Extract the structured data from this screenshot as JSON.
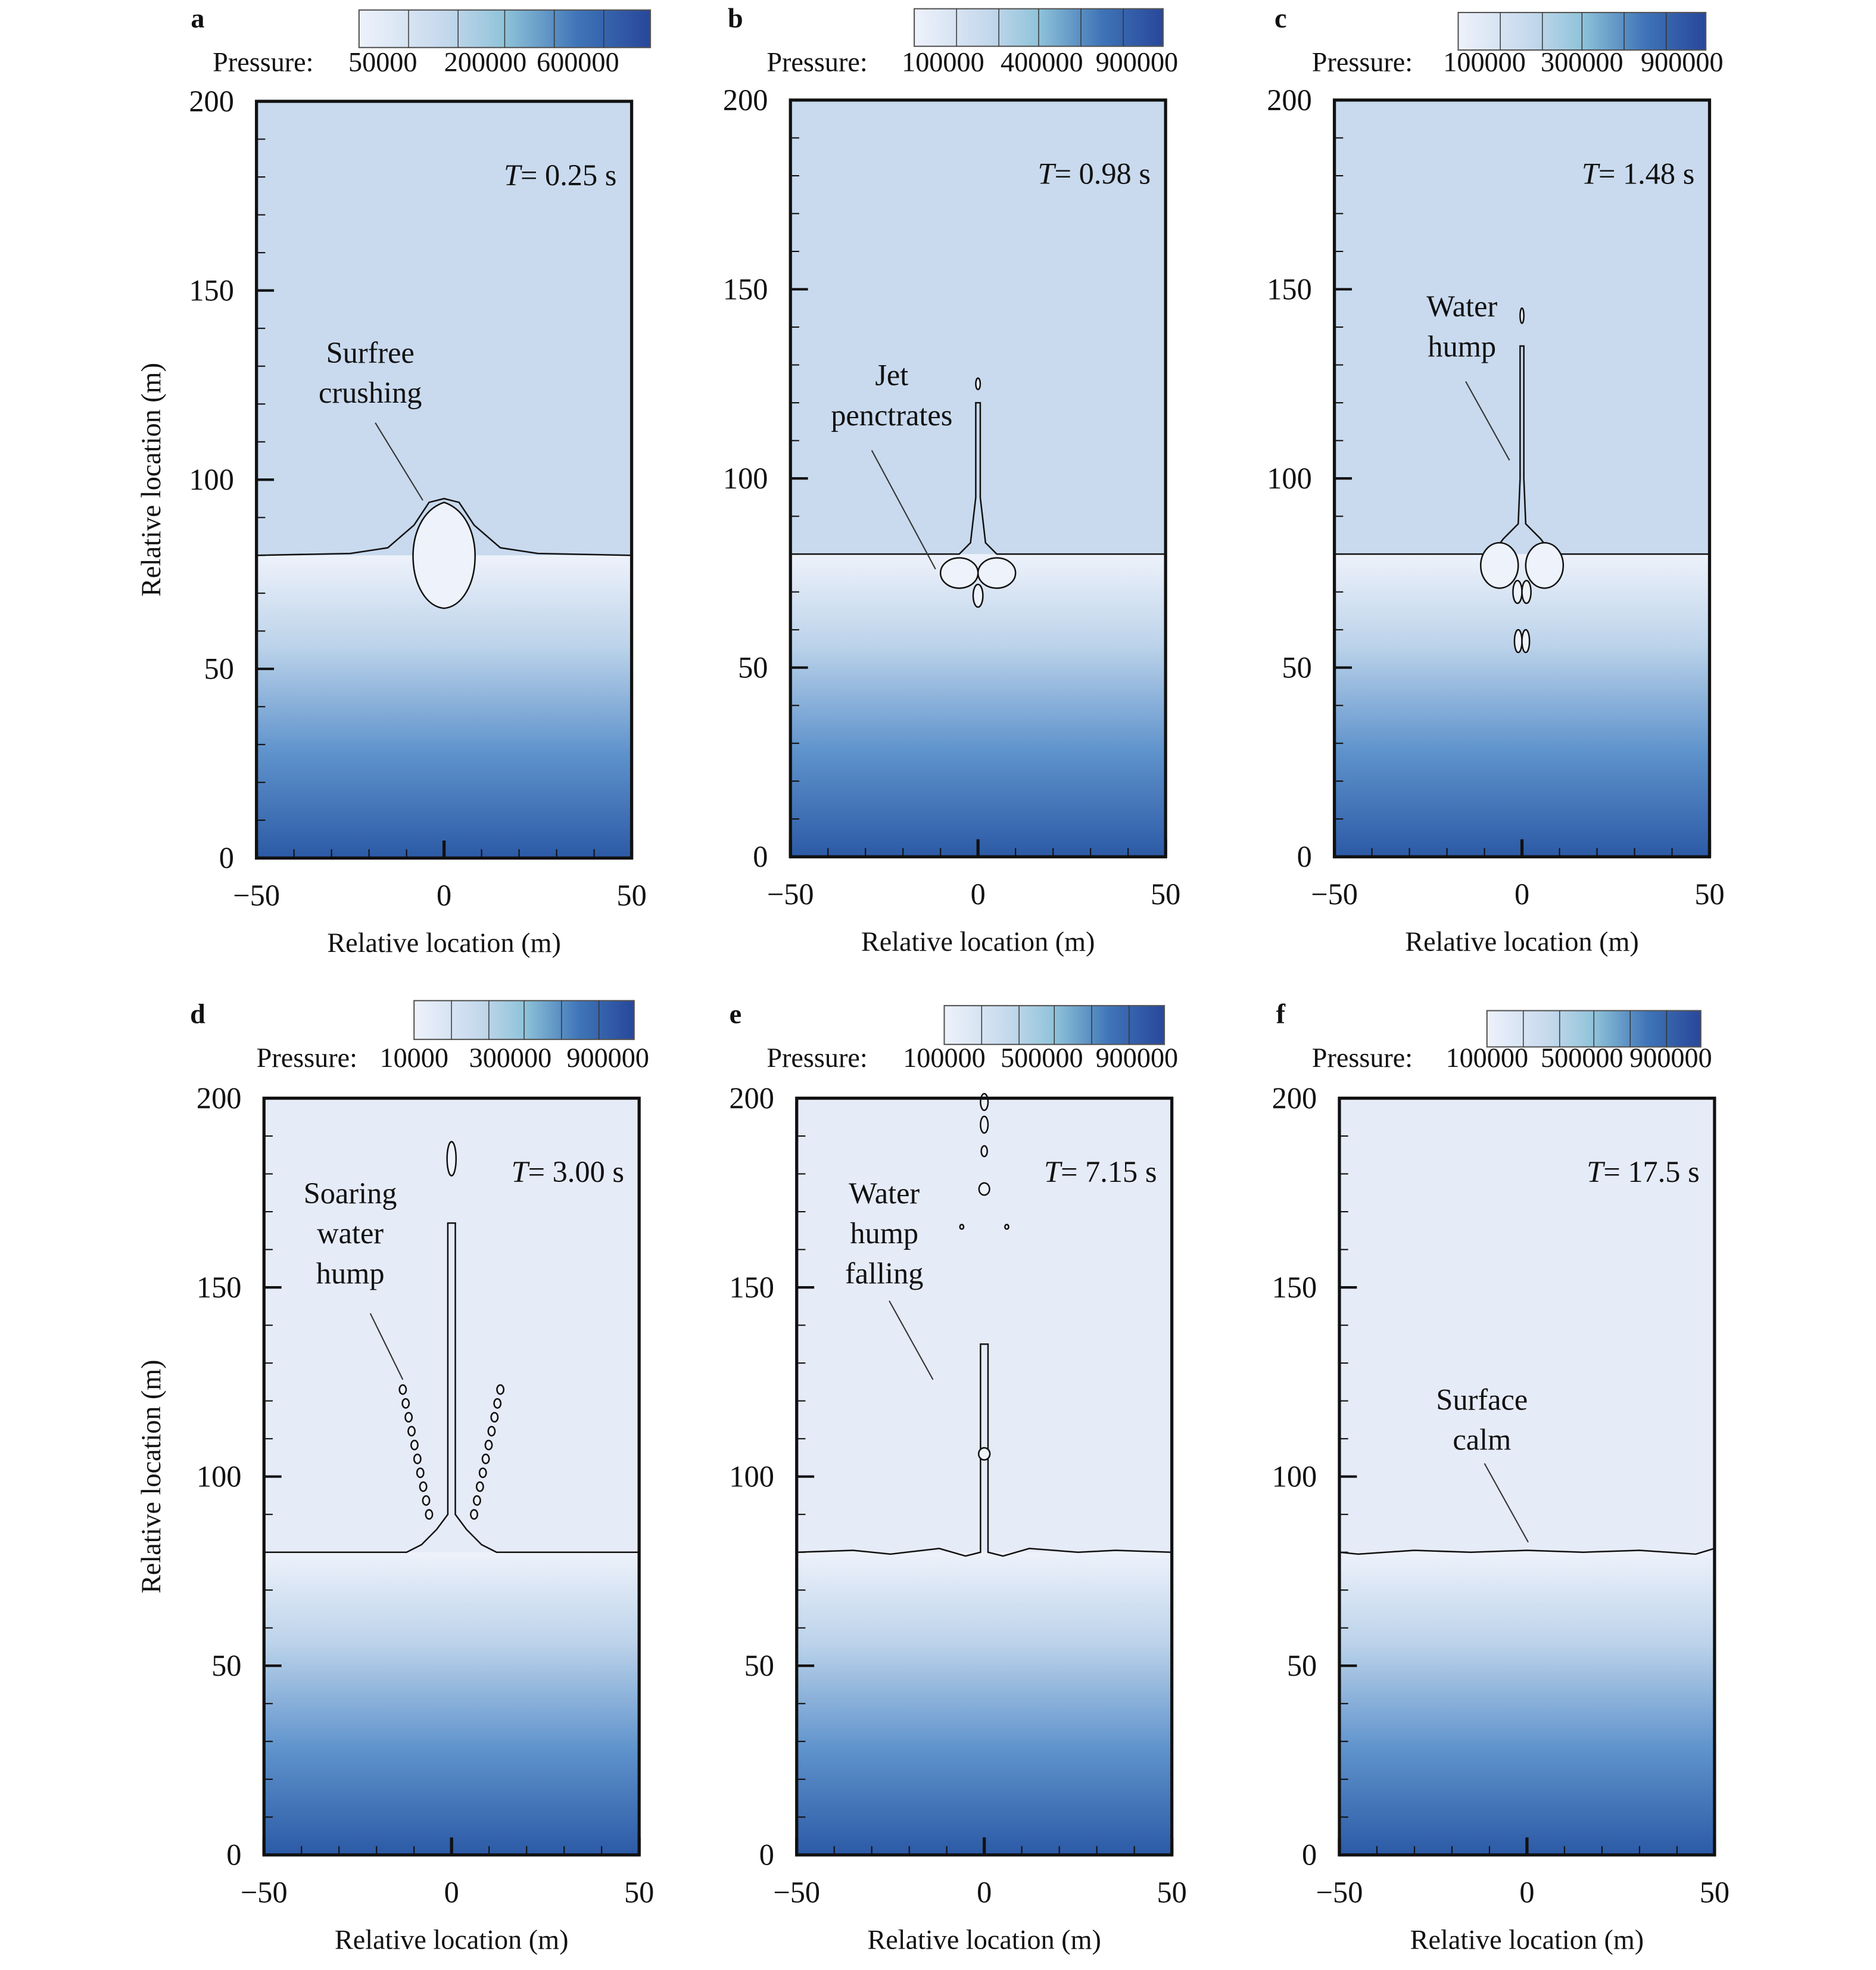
{
  "chart_data": [
    {
      "type": "heatmap",
      "panel": "a",
      "time_prefix": "T",
      "time_value": "= 0.25 s",
      "colorbar_label": "Pressure:",
      "colorbar_ticks": [
        "50000",
        "200000",
        "600000"
      ],
      "annotation": [
        "Surfree",
        "crushing"
      ],
      "xlabel": "Relative location (m)",
      "ylabel": "Relative location (m)",
      "xlim": [
        -50,
        50
      ],
      "ylim": [
        0,
        200
      ],
      "xticks": [
        "−50",
        "0",
        "50"
      ],
      "yticks": [
        "0",
        "50",
        "100",
        "150",
        "200"
      ],
      "air_color": "#c9daee"
    },
    {
      "type": "heatmap",
      "panel": "b",
      "time_prefix": "T",
      "time_value": "= 0.98 s",
      "colorbar_label": "Pressure:",
      "colorbar_ticks": [
        "100000",
        "400000",
        "900000"
      ],
      "annotation": [
        "Jet",
        "penctrates"
      ],
      "xlabel": "Relative location (m)",
      "ylabel": "",
      "xlim": [
        -50,
        50
      ],
      "ylim": [
        0,
        200
      ],
      "xticks": [
        "−50",
        "0",
        "50"
      ],
      "yticks": [
        "0",
        "50",
        "100",
        "150",
        "200"
      ],
      "air_color": "#c9daee"
    },
    {
      "type": "heatmap",
      "panel": "c",
      "time_prefix": "T",
      "time_value": "= 1.48 s",
      "colorbar_label": "Pressure:",
      "colorbar_ticks": [
        "100000",
        "300000",
        "900000"
      ],
      "annotation": [
        "Water",
        "hump"
      ],
      "xlabel": "Relative location (m)",
      "ylabel": "",
      "xlim": [
        -50,
        50
      ],
      "ylim": [
        0,
        200
      ],
      "xticks": [
        "−50",
        "0",
        "50"
      ],
      "yticks": [
        "0",
        "50",
        "100",
        "150",
        "200"
      ],
      "air_color": "#c9daee"
    },
    {
      "type": "heatmap",
      "panel": "d",
      "time_prefix": "T",
      "time_value": "= 3.00 s",
      "colorbar_label": "Pressure:",
      "colorbar_ticks": [
        "10000",
        "300000",
        "900000"
      ],
      "annotation": [
        "Soaring",
        "water",
        "hump"
      ],
      "xlabel": "Relative location (m)",
      "ylabel": "Relative location (m)",
      "xlim": [
        -50,
        50
      ],
      "ylim": [
        0,
        200
      ],
      "xticks": [
        "−50",
        "0",
        "50"
      ],
      "yticks": [
        "0",
        "50",
        "100",
        "150",
        "200"
      ],
      "air_color": "#e6ebf8"
    },
    {
      "type": "heatmap",
      "panel": "e",
      "time_prefix": "T",
      "time_value": "= 7.15 s",
      "colorbar_label": "Pressure:",
      "colorbar_ticks": [
        "100000",
        "500000",
        "900000"
      ],
      "annotation": [
        "Water",
        "hump",
        "falling"
      ],
      "xlabel": "Relative location (m)",
      "ylabel": "",
      "xlim": [
        -50,
        50
      ],
      "ylim": [
        0,
        200
      ],
      "xticks": [
        "−50",
        "0",
        "50"
      ],
      "yticks": [
        "0",
        "50",
        "100",
        "150",
        "200"
      ],
      "air_color": "#e6ebf8"
    },
    {
      "type": "heatmap",
      "panel": "f",
      "time_prefix": "T",
      "time_value": "= 17.5 s",
      "colorbar_label": "Pressure:",
      "colorbar_ticks": [
        "100000",
        "500000",
        "900000"
      ],
      "annotation": [
        "Surface",
        "calm"
      ],
      "xlabel": "Relative location (m)",
      "ylabel": "",
      "xlim": [
        -50,
        50
      ],
      "ylim": [
        0,
        200
      ],
      "xticks": [
        "−50",
        "0",
        "50"
      ],
      "yticks": [
        "0",
        "50",
        "100",
        "150",
        "200"
      ],
      "air_color": "#e6ebf8"
    }
  ],
  "water_level_m": 80,
  "colors": {
    "water_top": "#eef2fb",
    "water_bottom": "#2c5aa6",
    "colorbar_low": "#eef2fb",
    "colorbar_mid": "#8fc3d9",
    "colorbar_high": "#28479a"
  }
}
